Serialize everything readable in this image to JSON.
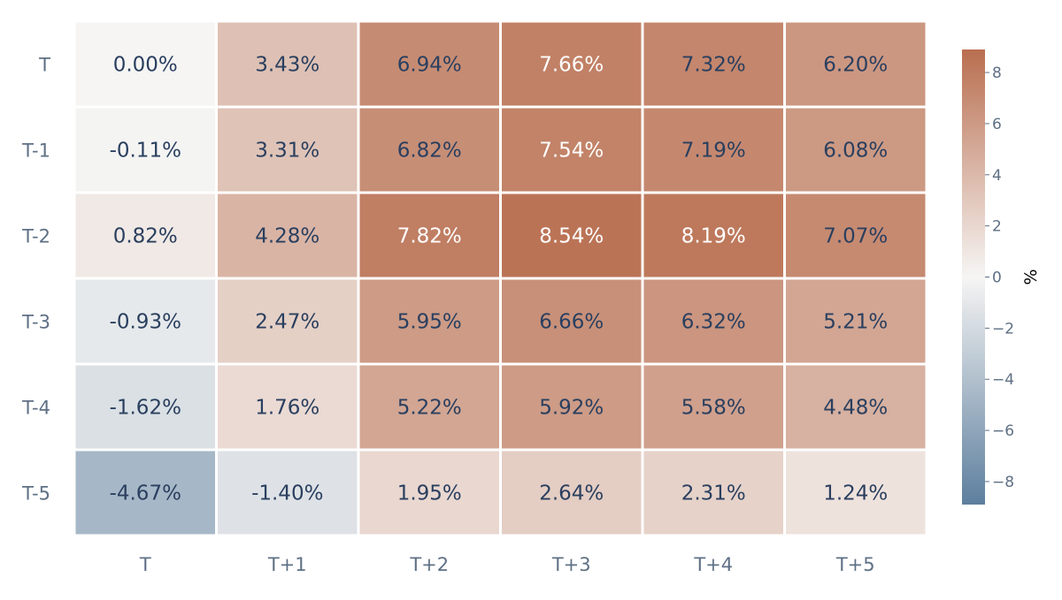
{
  "chart_data": {
    "type": "heatmap",
    "title": "",
    "x_labels": [
      "T",
      "T+1",
      "T+2",
      "T+3",
      "T+4",
      "T+5"
    ],
    "y_labels": [
      "T",
      "T-1",
      "T-2",
      "T-3",
      "T-4",
      "T-5"
    ],
    "values": [
      [
        0.0,
        3.43,
        6.94,
        7.66,
        7.32,
        6.2
      ],
      [
        -0.11,
        3.31,
        6.82,
        7.54,
        7.19,
        6.08
      ],
      [
        0.82,
        4.28,
        7.82,
        8.54,
        8.19,
        7.07
      ],
      [
        -0.93,
        2.47,
        5.95,
        6.66,
        6.32,
        5.21
      ],
      [
        -1.62,
        1.76,
        5.22,
        5.92,
        5.58,
        4.48
      ],
      [
        -4.67,
        -1.4,
        1.95,
        2.64,
        2.31,
        1.24
      ]
    ],
    "value_format": "percent_2dp",
    "colorbar": {
      "label": "%",
      "range": [
        -8.9,
        8.9
      ],
      "ticks": [
        8,
        6,
        4,
        2,
        0,
        -2,
        -4,
        -6,
        -8
      ],
      "tick_labels": [
        "8",
        "6",
        "4",
        "2",
        "0",
        "−2",
        "−4",
        "−6",
        "−8"
      ],
      "colorscale": {
        "negative_end": "#5d7f9e",
        "mid": "#f6f5f4",
        "positive_end": "#b96e4f"
      }
    },
    "colors": {
      "axis_text": "#5f7085",
      "cell_text_dark": "#2a3f5f",
      "cell_text_light": "#ffffff",
      "gap": "#ffffff"
    },
    "legend": "colorbar-right",
    "grid": false
  }
}
